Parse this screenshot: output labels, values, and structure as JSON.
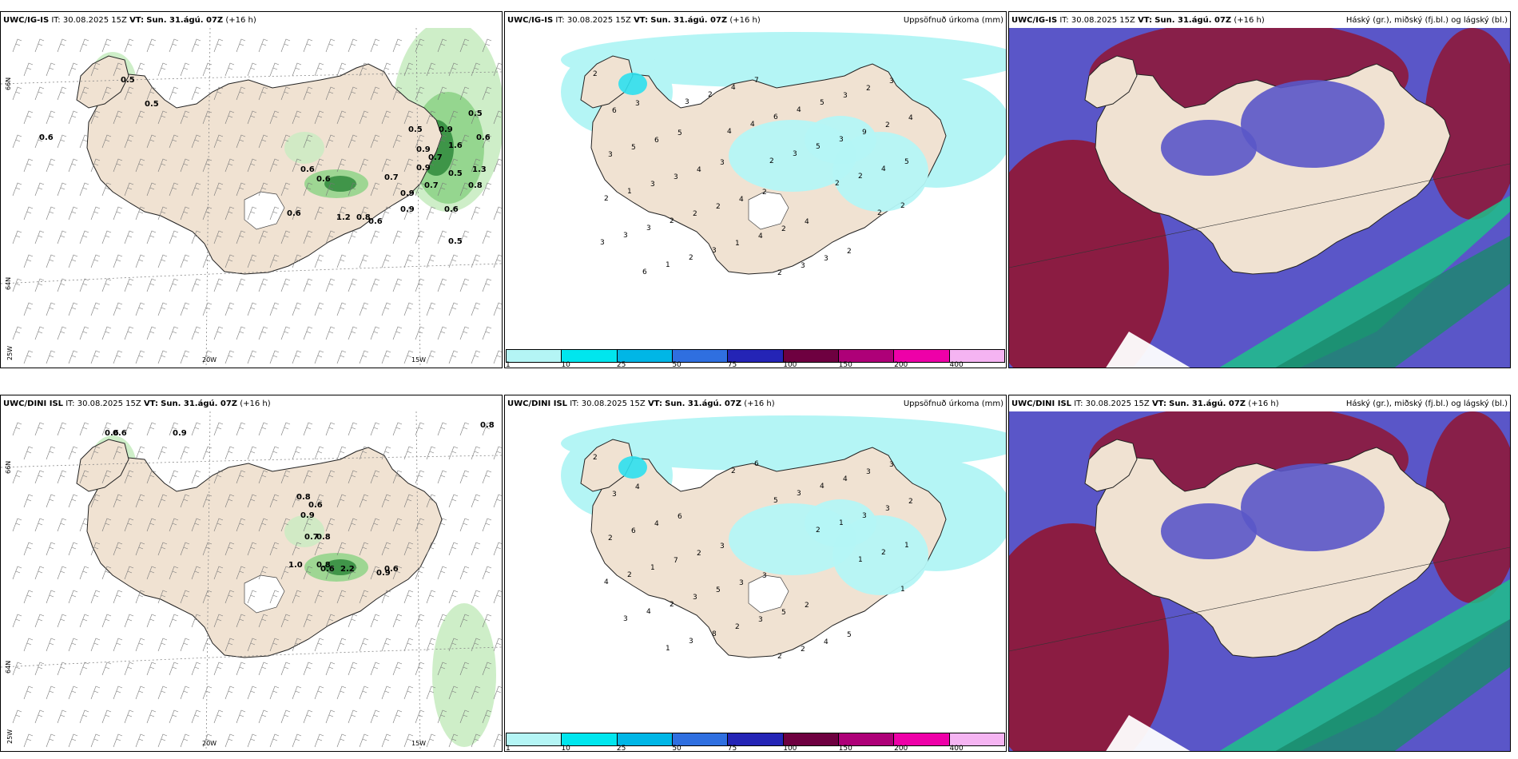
{
  "panels": [
    {
      "id": "p1",
      "model": "UWC/IG-IS",
      "it_label": "IT:",
      "it_value": "30.08.2025 15Z",
      "vt_label": "VT:",
      "vt_value": "Sun. 31.ágú. 07Z",
      "lead": "(+16 h)",
      "right_title": "",
      "lat_labels": [
        "66N",
        "64N"
      ],
      "lon_labels": [
        "25W",
        "20W",
        "15W"
      ],
      "value_labels": [
        "0.5",
        "0.5",
        "0.6",
        "0.6",
        "0.6",
        "0.6",
        "0.5",
        "0.9",
        "0.7",
        "0.9",
        "0.9",
        "0.7",
        "0.5",
        "0.8",
        "0.9",
        "0.6",
        "0.5",
        "0.9",
        "0.5",
        "0.6",
        "0.8",
        "0.6",
        "1.2",
        "0.7",
        "1.6",
        "1.3"
      ]
    },
    {
      "id": "p2",
      "model": "UWC/IG-IS",
      "it_label": "IT:",
      "it_value": "30.08.2025 15Z",
      "vt_label": "VT:",
      "vt_value": "Sun. 31.ágú. 07Z",
      "lead": "(+16 h)",
      "right_title": "Uppsöfnuð úrkoma (mm)",
      "colorbar_labels": [
        "1",
        "10",
        "25",
        "50",
        "75",
        "100",
        "150",
        "200",
        "400"
      ],
      "colorbar_colors": [
        "#b4f5f5",
        "#00e6ee",
        "#00b6e6",
        "#2f6fe0",
        "#2424b6",
        "#6e0040",
        "#ae0078",
        "#ee00a8",
        "#f5b4f2"
      ],
      "value_labels": [
        "2",
        "3",
        "5",
        "3",
        "2",
        "4",
        "2",
        "3",
        "6",
        "6",
        "4",
        "4",
        "2",
        "3",
        "2",
        "4",
        "5",
        "3",
        "2",
        "4",
        "3",
        "3",
        "2",
        "3",
        "3",
        "2",
        "1",
        "2",
        "5",
        "9",
        "5",
        "1",
        "2",
        "3",
        "7",
        "4",
        "3",
        "4",
        "2",
        "3",
        "2",
        "4",
        "6",
        "5",
        "2",
        "2",
        "3",
        "1",
        "2",
        "4",
        "3",
        "2",
        "2",
        "3",
        "6",
        "3",
        "4",
        "2"
      ]
    },
    {
      "id": "p3",
      "model": "UWC/IG-IS",
      "it_label": "IT:",
      "it_value": "30.08.2025 15Z",
      "vt_label": "VT:",
      "vt_value": "Sun. 31.ágú. 07Z",
      "lead": "(+16 h)",
      "right_title": "Háský (gr.), miðský (fj.bl.) og lágský (bl.)"
    },
    {
      "id": "p4",
      "model": "UWC/DINI ISL",
      "it_label": "IT:",
      "it_value": "30.08.2025 15Z",
      "vt_label": "VT:",
      "vt_value": "Sun. 31.ágú. 07Z",
      "lead": "(+16 h)",
      "right_title": "",
      "lat_labels": [
        "66N",
        "64N"
      ],
      "lon_labels": [
        "25W",
        "20W",
        "15W"
      ],
      "value_labels": [
        "0.6",
        "0.6",
        "0.9",
        "0.8",
        "0.6",
        "0.9",
        "0.7",
        "0.8",
        "1.0",
        "0.8",
        "2.2",
        "0.6",
        "0.9",
        "0.6",
        "0.8"
      ]
    },
    {
      "id": "p5",
      "model": "UWC/DINI ISL",
      "it_label": "IT:",
      "it_value": "30.08.2025 15Z",
      "vt_label": "VT:",
      "vt_value": "Sun. 31.ágú. 07Z",
      "lead": "(+16 h)",
      "right_title": "Uppsöfnuð úrkoma (mm)",
      "colorbar_labels": [
        "1",
        "10",
        "25",
        "50",
        "75",
        "100",
        "150",
        "200",
        "400"
      ],
      "colorbar_colors": [
        "#b4f5f5",
        "#00e6ee",
        "#00b6e6",
        "#2f6fe0",
        "#2424b6",
        "#6e0040",
        "#ae0078",
        "#ee00a8",
        "#f5b4f2"
      ],
      "value_labels": [
        "2",
        "4",
        "6",
        "3",
        "3",
        "2",
        "5",
        "3",
        "3",
        "4",
        "2",
        "3",
        "5",
        "4",
        "3",
        "2",
        "6",
        "7",
        "5",
        "3",
        "2",
        "4",
        "3",
        "2",
        "1",
        "3",
        "2",
        "2",
        "4",
        "3",
        "1",
        "2",
        "2",
        "8",
        "6",
        "3",
        "1",
        "2",
        "4",
        "4",
        "3",
        "2",
        "5",
        "2",
        "1",
        "1",
        "3",
        "1"
      ]
    },
    {
      "id": "p6",
      "model": "UWC/DINI ISL",
      "it_label": "IT:",
      "it_value": "30.08.2025 15Z",
      "vt_label": "VT:",
      "vt_value": "Sun. 31.ágú. 07Z",
      "lead": "(+16 h)",
      "right_title": "Háský (gr.), miðský (fj.bl.) og lágský (bl.)"
    }
  ],
  "colors": {
    "land": "#f0e2d2",
    "ocean": "#ffffff",
    "green_light": "#c9ecc2",
    "green_mid": "#8fd388",
    "green_dark": "#2f8a3c",
    "precip_light": "#b4f5f5",
    "precip_cyan": "#2ee0ee",
    "cloud_high": "#8b1c42",
    "cloud_mid": "#5a56c8",
    "cloud_low": "#1fbf8a"
  }
}
